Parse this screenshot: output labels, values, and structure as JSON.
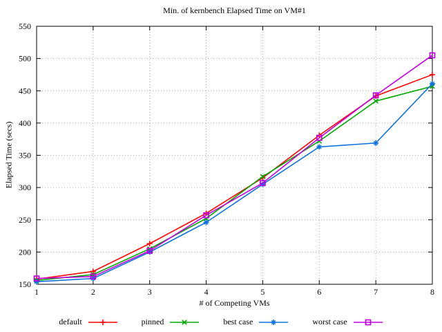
{
  "title": "Min. of kernbench Elapsed Time on VM#1",
  "chart_data": {
    "type": "line",
    "title": "Min. of kernbench Elapsed Time on VM#1",
    "xlabel": "# of Competing VMs",
    "ylabel": "Elapsed Time (secs)",
    "xlim": [
      1,
      8
    ],
    "ylim": [
      150,
      550
    ],
    "xticks": [
      1,
      2,
      3,
      4,
      5,
      6,
      7,
      8
    ],
    "yticks": [
      150,
      200,
      250,
      300,
      350,
      400,
      450,
      500,
      550
    ],
    "grid": true,
    "grid_style": "dotted",
    "legend_position": "bottom-center",
    "x": [
      1,
      2,
      3,
      4,
      5,
      6,
      7,
      8
    ],
    "series": [
      {
        "name": "default",
        "color": "#ff0000",
        "marker": "plus",
        "values": [
          158,
          170,
          213,
          260,
          315,
          381,
          442,
          475
        ]
      },
      {
        "name": "pinned",
        "color": "#00a800",
        "marker": "cross",
        "values": [
          156,
          165,
          205,
          252,
          317,
          372,
          434,
          457
        ]
      },
      {
        "name": "best case",
        "color": "#0a70e0",
        "marker": "asterisk",
        "values": [
          154,
          159,
          200,
          246,
          305,
          363,
          369,
          461
        ]
      },
      {
        "name": "worst case",
        "color": "#c000e0",
        "marker": "square",
        "values": [
          159,
          162,
          202,
          257,
          307,
          377,
          443,
          505
        ]
      }
    ],
    "colors": {
      "axis": "#000000",
      "grid": "#a8a8a8",
      "background": "#ffffff"
    }
  }
}
